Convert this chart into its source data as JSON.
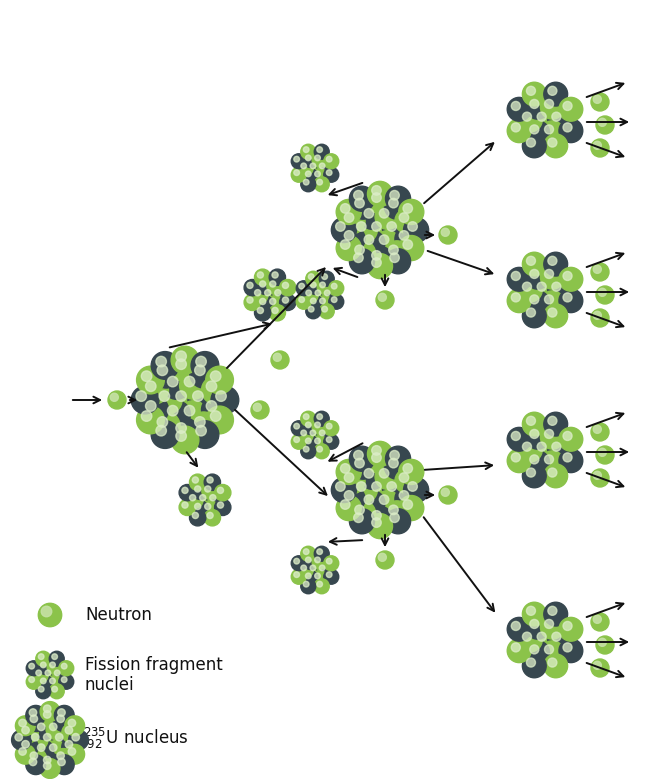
{
  "bg_color": "#ffffff",
  "neutron_green": "#8bc34a",
  "neutron_highlight": "#c5e1a5",
  "nucleus_dark": "#37474f",
  "nucleus_light": "#8bc34a",
  "nucleus_highlight": "#dcedc8",
  "arrow_color": "#111111",
  "text_color": "#111111",
  "legend_neutron_text": "Neutron",
  "legend_fragment_text": "Fission fragment\nnuclei",
  "legend_uranium_text": "U nucleus",
  "figsize": [
    6.5,
    7.79
  ],
  "dpi": 100
}
